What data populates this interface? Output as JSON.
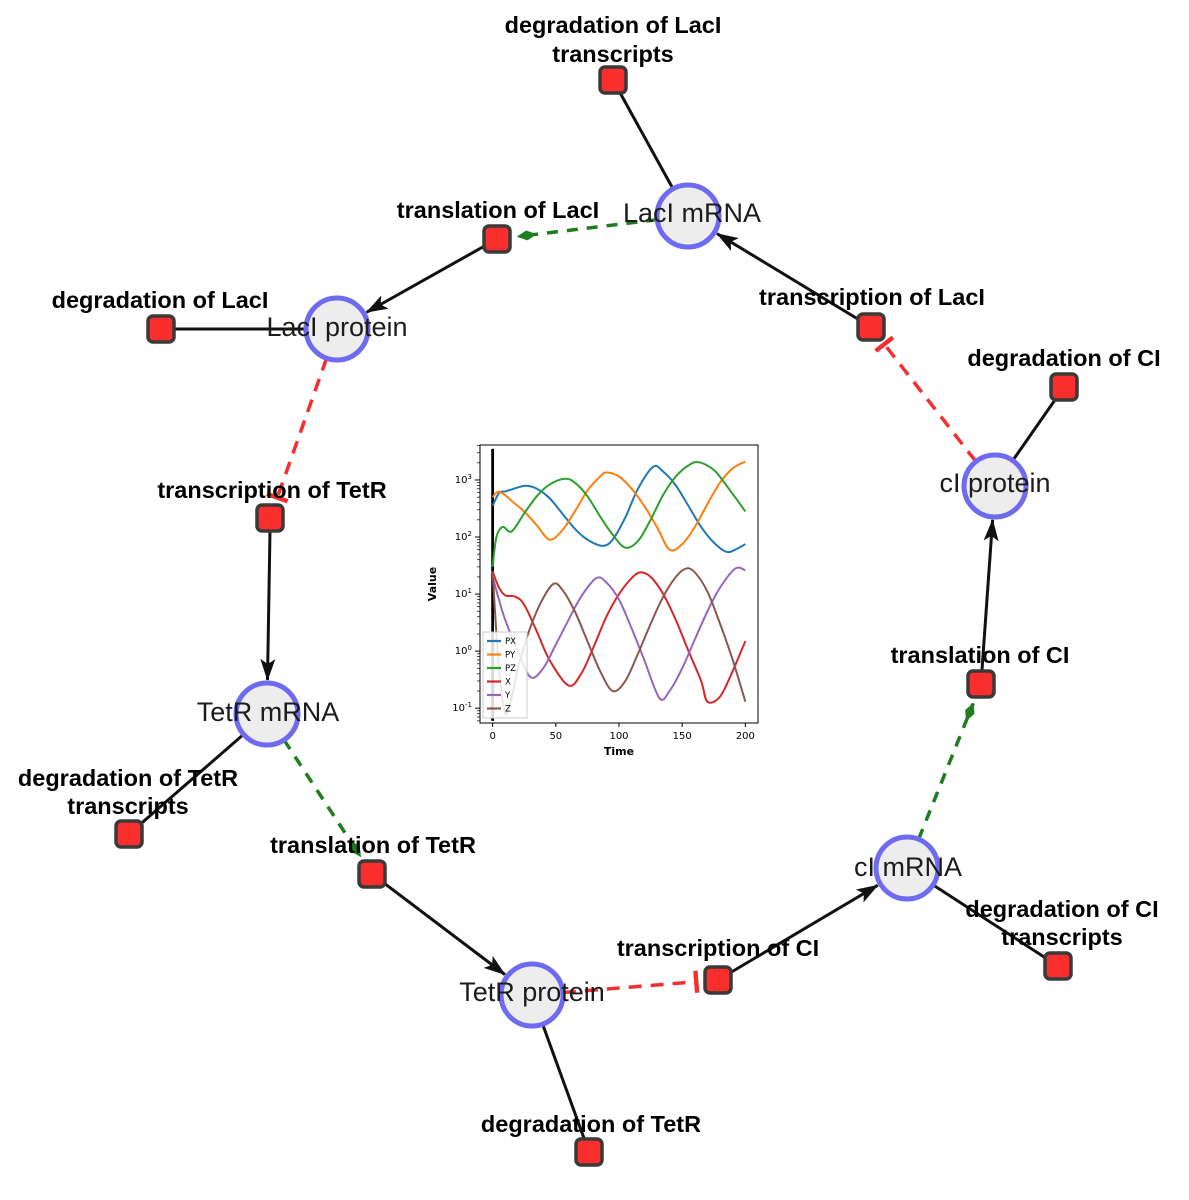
{
  "diagram": {
    "species": {
      "laci_mrna": {
        "label": "LacI mRNA"
      },
      "laci_protein": {
        "label": "LacI protein"
      },
      "tetr_mrna": {
        "label": "TetR mRNA"
      },
      "tetr_protein": {
        "label": "TetR protein"
      },
      "ci_mrna": {
        "label": "cI mRNA"
      },
      "ci_protein": {
        "label": "cI protein"
      }
    },
    "reactions": {
      "deg_laci_tx": {
        "line1": "degradation of LacI",
        "line2": "transcripts"
      },
      "translation_laci": {
        "label": "translation of LacI"
      },
      "transcription_laci": {
        "label": "transcription of LacI"
      },
      "deg_laci": {
        "label": "degradation of LacI"
      },
      "deg_ci": {
        "label": "degradation of CI"
      },
      "transcription_tetr": {
        "label": "transcription of TetR"
      },
      "translation_ci": {
        "label": "translation of CI"
      },
      "deg_tetr_tx": {
        "line1": "degradation of TetR",
        "line2": "transcripts"
      },
      "translation_tetr": {
        "label": "translation of TetR"
      },
      "deg_ci_tx": {
        "line1": "degradation of CI",
        "line2": "transcripts"
      },
      "transcription_ci": {
        "label": "transcription of CI"
      },
      "deg_tetr": {
        "label": "degradation of TetR"
      }
    },
    "colors": {
      "species_fill": "#ededed",
      "species_border": "#6f6af0",
      "reaction_fill": "#fb2e2e",
      "reaction_border": "#3a3a3a",
      "product_edge": "#111111",
      "modifier_edge": "#1e7d1e",
      "inhibition_edge": "#f32f2f"
    }
  },
  "chart_data": {
    "type": "line",
    "title": "",
    "xlabel": "Time",
    "ylabel": "Value",
    "log_y": true,
    "xlim": [
      -10,
      210
    ],
    "ylim": [
      0.055,
      4100
    ],
    "x_ticks": [
      0,
      50,
      100,
      150,
      200
    ],
    "y_tick_exponents": [
      -1,
      0,
      1,
      2,
      3
    ],
    "legend_loc": "lower left",
    "vline_x": 0,
    "series": [
      {
        "name": "PX",
        "color": "#1f77b4",
        "points": [
          [
            0,
            350
          ],
          [
            5,
            590
          ],
          [
            10,
            630
          ],
          [
            15,
            680
          ],
          [
            20,
            740
          ],
          [
            27,
            790
          ],
          [
            35,
            700
          ],
          [
            45,
            480
          ],
          [
            55,
            260
          ],
          [
            65,
            140
          ],
          [
            75,
            90
          ],
          [
            87,
            70
          ],
          [
            95,
            90
          ],
          [
            105,
            220
          ],
          [
            115,
            700
          ],
          [
            127,
            1700
          ],
          [
            135,
            1400
          ],
          [
            145,
            800
          ],
          [
            155,
            350
          ],
          [
            165,
            150
          ],
          [
            175,
            80
          ],
          [
            185,
            55
          ],
          [
            192,
            60
          ],
          [
            200,
            75
          ]
        ]
      },
      {
        "name": "PY",
        "color": "#ff7f0e",
        "points": [
          [
            0,
            500
          ],
          [
            4,
            620
          ],
          [
            10,
            540
          ],
          [
            15,
            430
          ],
          [
            25,
            280
          ],
          [
            35,
            160
          ],
          [
            45,
            90
          ],
          [
            55,
            130
          ],
          [
            65,
            280
          ],
          [
            75,
            650
          ],
          [
            85,
            1150
          ],
          [
            90,
            1350
          ],
          [
            100,
            1150
          ],
          [
            110,
            700
          ],
          [
            120,
            350
          ],
          [
            130,
            150
          ],
          [
            140,
            60
          ],
          [
            150,
            75
          ],
          [
            160,
            150
          ],
          [
            170,
            380
          ],
          [
            180,
            900
          ],
          [
            190,
            1600
          ],
          [
            200,
            2100
          ]
        ]
      },
      {
        "name": "PZ",
        "color": "#2ca02c",
        "points": [
          [
            0,
            30
          ],
          [
            3,
            100
          ],
          [
            8,
            150
          ],
          [
            15,
            125
          ],
          [
            25,
            260
          ],
          [
            35,
            520
          ],
          [
            45,
            830
          ],
          [
            57,
            1050
          ],
          [
            65,
            900
          ],
          [
            75,
            520
          ],
          [
            85,
            230
          ],
          [
            95,
            110
          ],
          [
            105,
            65
          ],
          [
            115,
            85
          ],
          [
            125,
            200
          ],
          [
            135,
            550
          ],
          [
            145,
            1150
          ],
          [
            155,
            1800
          ],
          [
            163,
            2050
          ],
          [
            175,
            1500
          ],
          [
            185,
            800
          ],
          [
            195,
            400
          ],
          [
            200,
            280
          ]
        ]
      },
      {
        "name": "X",
        "color": "#d62728",
        "points": [
          [
            0,
            25
          ],
          [
            5,
            13
          ],
          [
            10,
            9.5
          ],
          [
            18,
            9
          ],
          [
            25,
            6.5
          ],
          [
            35,
            2.2
          ],
          [
            45,
            0.7
          ],
          [
            60,
            0.25
          ],
          [
            70,
            0.4
          ],
          [
            80,
            1.2
          ],
          [
            90,
            4
          ],
          [
            100,
            10
          ],
          [
            110,
            19
          ],
          [
            117,
            24
          ],
          [
            125,
            20
          ],
          [
            135,
            10
          ],
          [
            145,
            3.5
          ],
          [
            155,
            1
          ],
          [
            165,
            0.3
          ],
          [
            170,
            0.13
          ],
          [
            180,
            0.16
          ],
          [
            190,
            0.45
          ],
          [
            200,
            1.5
          ]
        ]
      },
      {
        "name": "Y",
        "color": "#9467bd",
        "points": [
          [
            0,
            20
          ],
          [
            5,
            8
          ],
          [
            10,
            3.5
          ],
          [
            20,
            1
          ],
          [
            30,
            0.35
          ],
          [
            40,
            0.5
          ],
          [
            50,
            1.3
          ],
          [
            60,
            3.5
          ],
          [
            70,
            9
          ],
          [
            82,
            19
          ],
          [
            90,
            16
          ],
          [
            100,
            8
          ],
          [
            110,
            2.5
          ],
          [
            120,
            0.7
          ],
          [
            132,
            0.15
          ],
          [
            140,
            0.2
          ],
          [
            150,
            0.5
          ],
          [
            160,
            1.6
          ],
          [
            170,
            5
          ],
          [
            180,
            13
          ],
          [
            192,
            28
          ],
          [
            200,
            26
          ]
        ]
      },
      {
        "name": "Z",
        "color": "#8c564b",
        "points": [
          [
            0,
            25
          ],
          [
            3,
            2
          ],
          [
            6,
            0.3
          ],
          [
            10,
            0.08
          ],
          [
            15,
            0.15
          ],
          [
            20,
            0.5
          ],
          [
            28,
            2
          ],
          [
            38,
            7
          ],
          [
            48,
            15
          ],
          [
            55,
            12
          ],
          [
            65,
            5
          ],
          [
            75,
            1.5
          ],
          [
            85,
            0.45
          ],
          [
            95,
            0.2
          ],
          [
            105,
            0.3
          ],
          [
            115,
            0.9
          ],
          [
            125,
            3
          ],
          [
            135,
            9
          ],
          [
            145,
            20
          ],
          [
            153,
            28
          ],
          [
            160,
            24
          ],
          [
            170,
            11
          ],
          [
            180,
            3
          ],
          [
            190,
            0.7
          ],
          [
            200,
            0.13
          ]
        ]
      }
    ]
  }
}
